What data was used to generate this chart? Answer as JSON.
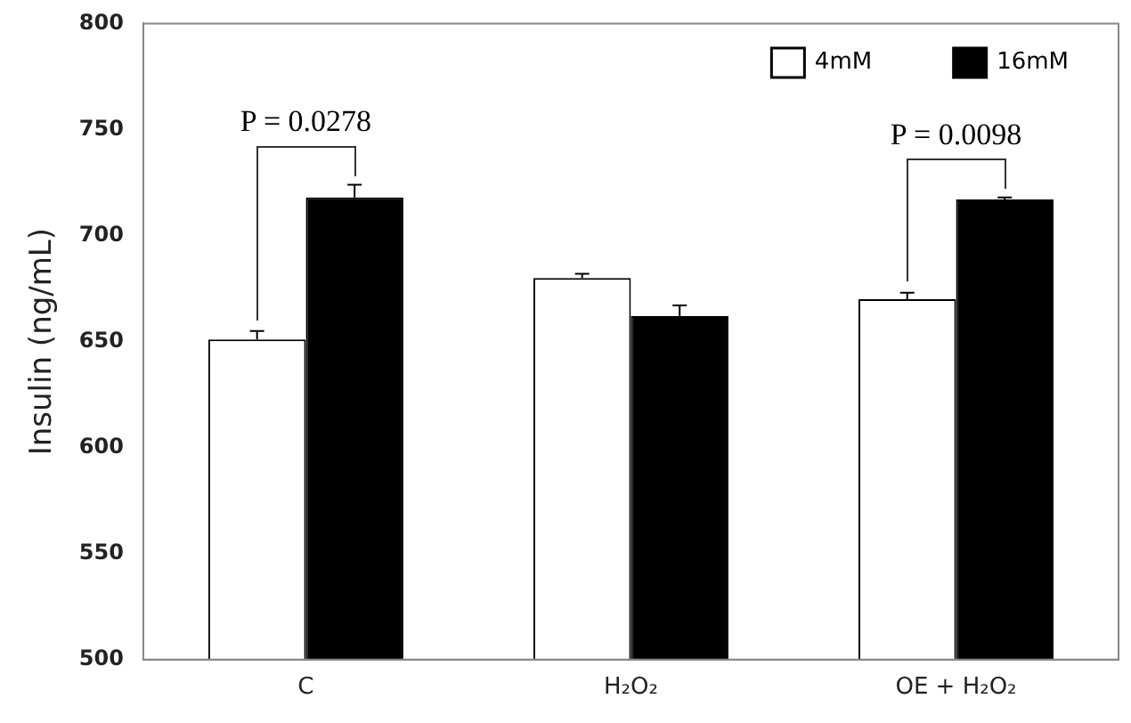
{
  "chart_data": {
    "type": "bar",
    "ylabel": "Insulin (ng/mL)",
    "categories": [
      "C",
      "H₂O₂",
      "OE + H₂O₂"
    ],
    "series": [
      {
        "name": "4mM",
        "color": "#ffffff",
        "values": [
          651,
          680,
          670
        ],
        "errors": [
          4,
          2,
          3
        ]
      },
      {
        "name": "16mM",
        "color": "#000000",
        "values": [
          718,
          662,
          717
        ],
        "errors": [
          6,
          5,
          1
        ]
      }
    ],
    "ylim": [
      500,
      800
    ],
    "yticks": [
      500,
      550,
      600,
      650,
      700,
      750,
      800
    ],
    "grid": false,
    "legend": "top right",
    "annotations": [
      "P = 0.0278",
      "P = 0.0098"
    ]
  }
}
